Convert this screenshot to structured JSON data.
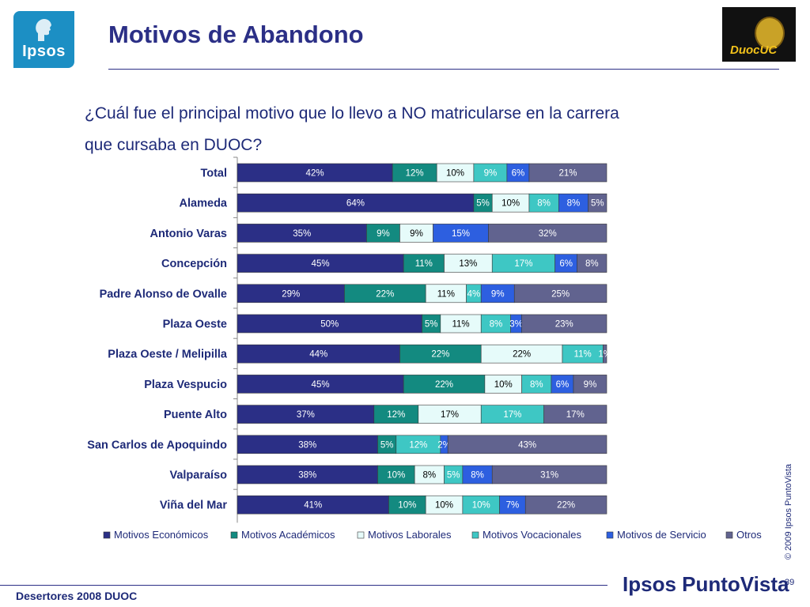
{
  "header": {
    "title": "Motivos de Abandono",
    "ipsos_logo_text": "Ipsos",
    "duoc_logo_text": "DuocUC"
  },
  "question": "¿Cuál fue el principal motivo que lo llevo a NO matricularse en la carrera que cursaba en DUOC?",
  "colors": {
    "economicos": "#2b2f86",
    "academicos": "#138a80",
    "laborales": "#e6fbfa",
    "vocacionales": "#3ec7c4",
    "servicio": "#2d5fe0",
    "otros": "#61638f"
  },
  "chart_data": {
    "type": "bar",
    "orientation": "horizontal",
    "stacked": true,
    "title": "",
    "xlim": [
      0,
      100
    ],
    "legend_position": "bottom",
    "categories": [
      "Total",
      "Alameda",
      "Antonio Varas",
      "Concepción",
      "Padre Alonso de Ovalle",
      "Plaza Oeste",
      "Plaza Oeste / Melipilla",
      "Plaza Vespucio",
      "Puente Alto",
      "San Carlos de Apoquindo",
      "Valparaíso",
      "Viña del Mar"
    ],
    "series": [
      {
        "name": "Motivos Económicos",
        "values": [
          42,
          64,
          35,
          45,
          29,
          50,
          44,
          45,
          37,
          38,
          38,
          41
        ]
      },
      {
        "name": "Motivos Académicos",
        "values": [
          12,
          5,
          9,
          11,
          22,
          5,
          22,
          22,
          12,
          5,
          10,
          10
        ]
      },
      {
        "name": "Motivos Laborales",
        "values": [
          10,
          10,
          9,
          13,
          11,
          11,
          22,
          10,
          17,
          0,
          8,
          10
        ]
      },
      {
        "name": "Motivos  Vocacionales",
        "values": [
          9,
          8,
          0,
          17,
          4,
          8,
          11,
          8,
          17,
          12,
          5,
          10
        ]
      },
      {
        "name": "Motivos de Servicio",
        "values": [
          6,
          8,
          15,
          6,
          9,
          3,
          0,
          6,
          0,
          2,
          8,
          7
        ]
      },
      {
        "name": "Otros",
        "values": [
          21,
          5,
          32,
          8,
          25,
          23,
          1,
          9,
          17,
          43,
          31,
          22
        ]
      }
    ]
  },
  "footer": {
    "left": "Desertores 2008 DUOC",
    "brand": "Ipsos PuntoVista",
    "copyright": "© 2009 Ipsos PuntoVista",
    "page": "39"
  }
}
